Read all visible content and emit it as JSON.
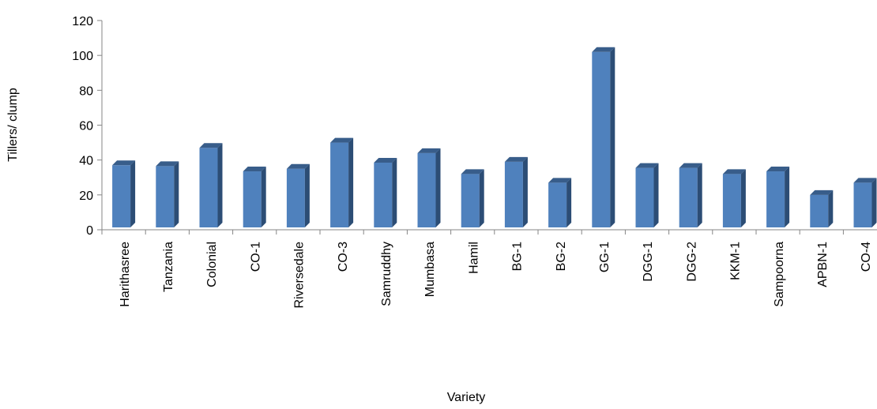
{
  "chart_data": {
    "type": "bar",
    "title": "",
    "xlabel": "Variety",
    "ylabel": "Tillers/ clump",
    "ylim": [
      0,
      120
    ],
    "yticks": [
      0,
      20,
      40,
      60,
      80,
      100,
      120
    ],
    "grid": false,
    "legend": "none",
    "bar_color": "#4f81bd",
    "bar_side_color": "#2c4d75",
    "bar_top_color": "#385d8a",
    "categories": [
      "Harithasree",
      "Tanzania",
      "Colonial",
      "CO-1",
      "Riversedale",
      "CO-3",
      "Samruddhy",
      "Mumbasa",
      "Hamil",
      "BG-1",
      "BG-2",
      "GG-1",
      "DGG-1",
      "DGG-2",
      "KKM-1",
      "Sampoorna",
      "APBN-1",
      "CO-4"
    ],
    "values": [
      37,
      36.5,
      47,
      33.5,
      35,
      50,
      38.5,
      44,
      32,
      39,
      27,
      102,
      35.5,
      35.5,
      32,
      33.5,
      20,
      27
    ]
  }
}
